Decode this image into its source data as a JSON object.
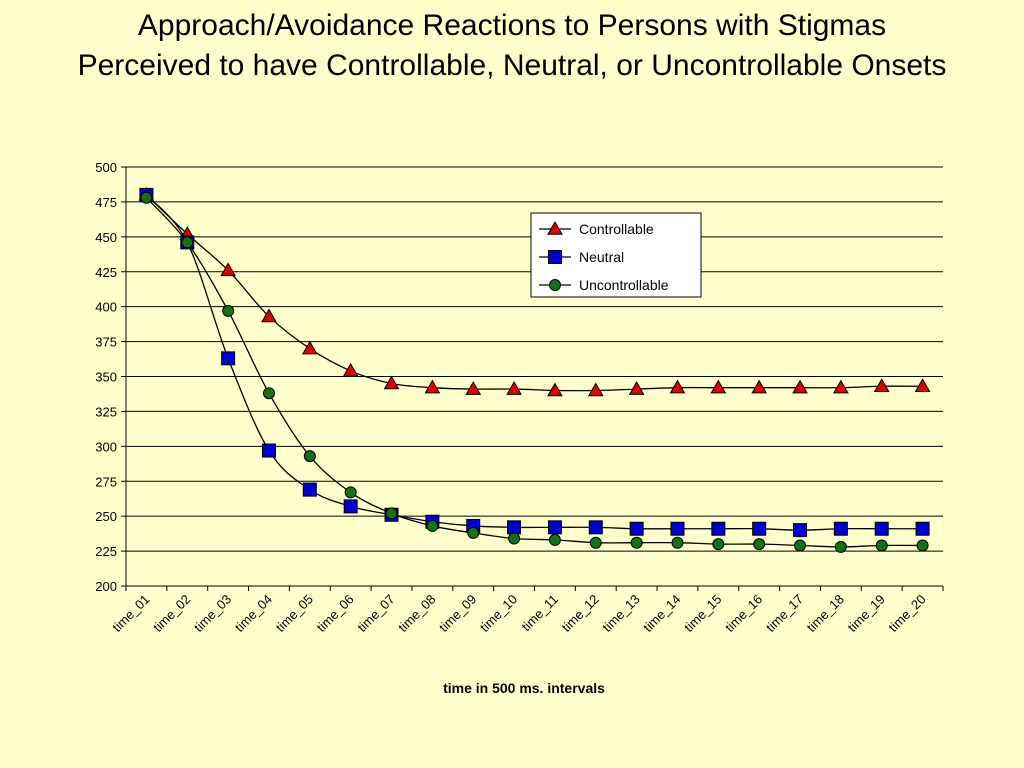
{
  "title": {
    "line1": "Approach/Avoidance Reactions to Persons with Stigmas",
    "line2": "Perceived to have Controllable, Neutral, or Uncontrollable Onsets"
  },
  "chart_data": {
    "type": "line",
    "xlabel": "time in 500 ms. intervals",
    "ylabel": "",
    "ylim": [
      200,
      500
    ],
    "yticks": [
      200,
      225,
      250,
      275,
      300,
      325,
      350,
      375,
      400,
      425,
      450,
      475,
      500
    ],
    "grid": "horizontal",
    "legend": "top-right",
    "categories": [
      "time_01",
      "time_02",
      "time_03",
      "time_04",
      "time_05",
      "time_06",
      "time_07",
      "time_08",
      "time_09",
      "time_10",
      "time_11",
      "time_12",
      "time_13",
      "time_14",
      "time_15",
      "time_16",
      "time_17",
      "time_18",
      "time_19",
      "time_20"
    ],
    "series": [
      {
        "name": "Controllable",
        "marker": "triangle",
        "color": "#dd0000",
        "values": [
          480,
          452,
          426,
          393,
          370,
          354,
          345,
          342,
          341,
          341,
          340,
          340,
          341,
          342,
          342,
          342,
          342,
          342,
          343,
          343
        ]
      },
      {
        "name": "Neutral",
        "marker": "square",
        "color": "#0000cc",
        "values": [
          480,
          446,
          363,
          297,
          269,
          257,
          251,
          246,
          243,
          242,
          242,
          242,
          241,
          241,
          241,
          241,
          240,
          241,
          241,
          241
        ]
      },
      {
        "name": "Uncontrollable",
        "marker": "circle",
        "color": "#137313",
        "values": [
          478,
          446,
          397,
          338,
          293,
          267,
          252,
          243,
          238,
          234,
          233,
          231,
          231,
          231,
          230,
          230,
          229,
          228,
          229,
          229
        ]
      }
    ]
  }
}
